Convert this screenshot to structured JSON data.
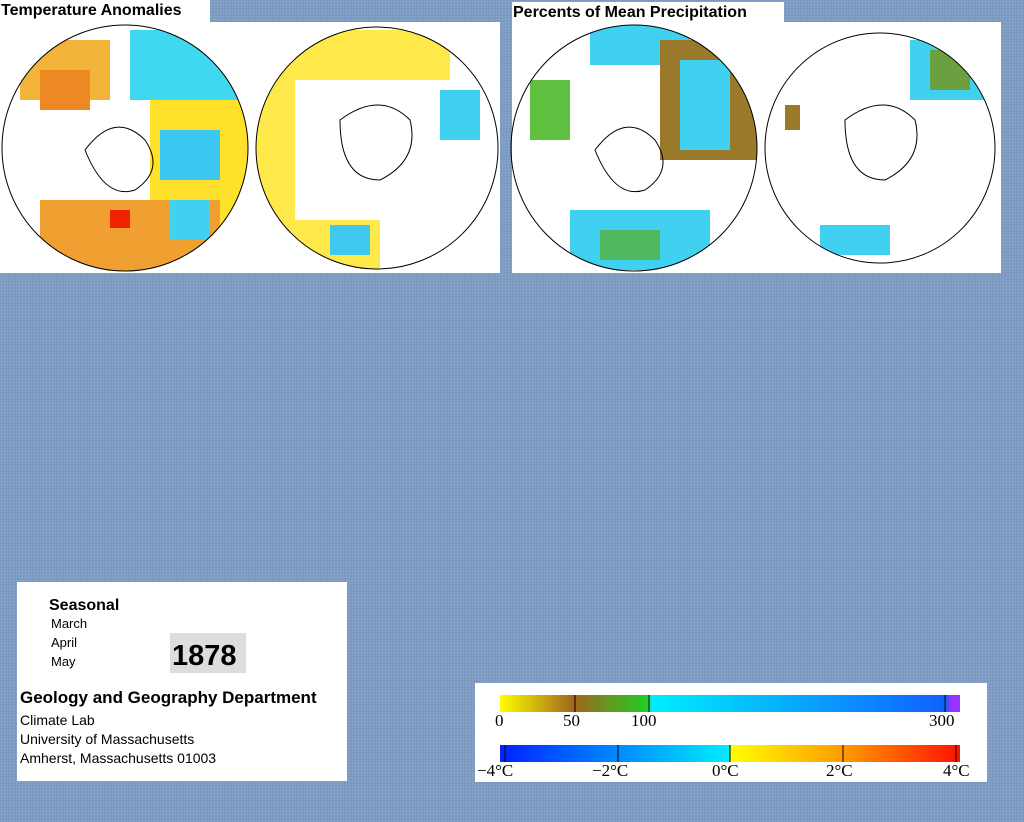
{
  "panels": [
    {
      "title": "Temperature Anomalies"
    },
    {
      "title": "Percents of Mean Precipitation"
    }
  ],
  "info": {
    "heading": "Seasonal",
    "months": [
      "March",
      "April",
      "May"
    ],
    "year": "1878",
    "department": "Geology and Geography Department",
    "lines": [
      "Climate Lab",
      "University of Massachusetts",
      "Amherst, Massachusetts 01003"
    ]
  },
  "legend": {
    "precipitation_labels": [
      "0",
      "50",
      "100",
      "300"
    ],
    "temperature_labels": [
      "−4°C",
      "−2°C",
      "0°C",
      "2°C",
      "4°C"
    ]
  }
}
